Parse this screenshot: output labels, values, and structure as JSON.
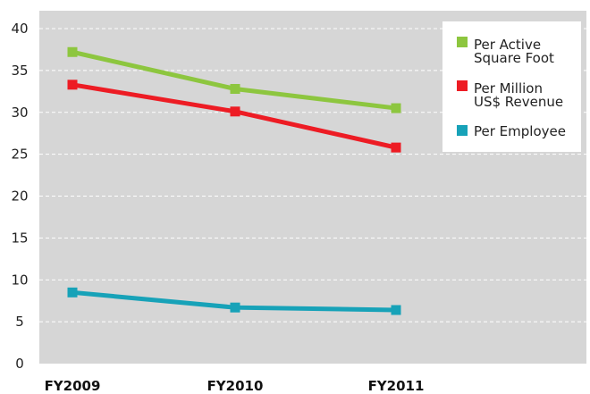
{
  "chart_data": {
    "type": "line",
    "categories": [
      "FY2009",
      "FY2010",
      "FY2011"
    ],
    "ylim": [
      0,
      40
    ],
    "yticks": [
      0,
      5,
      10,
      15,
      20,
      25,
      30,
      35,
      40
    ],
    "grid": true,
    "legend_position": "top-right",
    "series": [
      {
        "name_lines": [
          "Per Active",
          "Square Foot"
        ],
        "color": "#8dc63f",
        "values": [
          37.2,
          32.8,
          30.5
        ]
      },
      {
        "name_lines": [
          "Per Million",
          "US$ Revenue"
        ],
        "color": "#ed1c24",
        "values": [
          33.3,
          30.1,
          25.8
        ]
      },
      {
        "name_lines": [
          "Per Employee"
        ],
        "color": "#17a2b8",
        "values": [
          8.5,
          6.7,
          6.4
        ]
      }
    ],
    "colors": {
      "plot_background": "#d6d6d6",
      "gridline": "#ffffff",
      "legend_background": "#ffffff"
    }
  }
}
